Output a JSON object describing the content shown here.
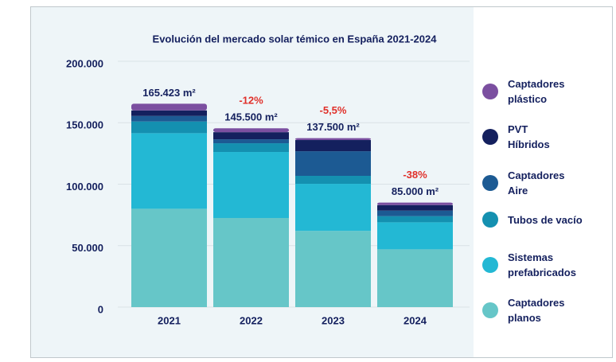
{
  "chart_data": {
    "type": "stacked-bar",
    "title": "Evolución del mercado solar témico en España 2021-2024",
    "categories": [
      "2021",
      "2022",
      "2023",
      "2024"
    ],
    "series": [
      {
        "name": "Captadores planos",
        "color": "#66c6c8",
        "values": [
          80000,
          72500,
          62000,
          47000
        ]
      },
      {
        "name": "Sistemas prefabricados",
        "color": "#23b8d4",
        "values": [
          61500,
          53700,
          38300,
          22000
        ]
      },
      {
        "name": "Tubos de vacío",
        "color": "#1490b0",
        "values": [
          9500,
          7100,
          6500,
          5000
        ]
      },
      {
        "name": "Captadores Aire",
        "color": "#1c5a93",
        "values": [
          4500,
          3200,
          20000,
          4500
        ]
      },
      {
        "name": "PVT Híbridos",
        "color": "#14205e",
        "values": [
          4500,
          5800,
          9100,
          4500
        ]
      },
      {
        "name": "Captadores plástico",
        "color": "#7b4fa0",
        "values": [
          5423,
          3200,
          1600,
          2000
        ]
      }
    ],
    "totals": [
      165423,
      145500,
      137500,
      85000
    ],
    "total_labels": [
      "165.423 m²",
      "145.500 m²",
      "137.500 m²",
      "85.000 m²"
    ],
    "change_labels": [
      null,
      "-12%",
      "-5,5%",
      "-38%"
    ],
    "ylim": [
      0,
      200000
    ],
    "yticks": [
      0,
      {
        "value": 50000,
        "label": "50.000"
      },
      {
        "value": 100000,
        "label": "100.000"
      },
      {
        "value": 150000,
        "label": "150.000"
      },
      {
        "value": 200000,
        "label": "200.000"
      }
    ],
    "grid": true
  }
}
